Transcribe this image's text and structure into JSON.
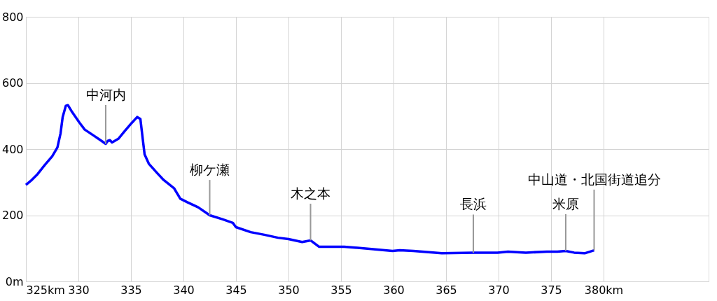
{
  "chart_data": {
    "type": "line",
    "x": [
      325,
      325.5,
      326.1,
      326.8,
      327.5,
      328.0,
      328.3,
      328.5,
      328.8,
      329.0,
      329.4,
      330.1,
      330.6,
      331.4,
      332.1,
      332.6,
      332.8,
      333.0,
      333.2,
      333.8,
      334.4,
      335.1,
      335.6,
      335.9,
      336.1,
      336.3,
      336.7,
      337.4,
      338.1,
      339.1,
      339.7,
      340.4,
      341.4,
      342.5,
      343.7,
      344.7,
      345.0,
      346.4,
      347.7,
      349.0,
      350.0,
      351.3,
      352.1,
      352.9,
      355.3,
      357.9,
      359.9,
      360.6,
      361.9,
      364.6,
      367.6,
      369.9,
      370.9,
      372.6,
      374.6,
      375.6,
      376.4,
      377.2,
      378.2,
      379.1
    ],
    "series": [
      {
        "color": "#0000ff",
        "values": [
          292,
          305,
          324,
          352,
          378,
          405,
          448,
          497,
          531,
          533,
          512,
          480,
          459,
          442,
          427,
          416,
          425,
          427,
          420,
          431,
          454,
          480,
          497,
          491,
          437,
          384,
          356,
          331,
          307,
          282,
          250,
          239,
          224,
          200,
          188,
          177,
          164,
          149,
          141,
          132,
          128,
          119,
          124,
          105,
          105,
          98,
          92,
          94,
          92,
          85,
          87,
          87,
          90,
          87,
          90,
          90,
          92,
          87,
          85,
          94
        ]
      }
    ],
    "xlim": [
      325,
      390
    ],
    "xticks": [
      {
        "value": 325,
        "label": "325km"
      },
      330,
      335,
      340,
      345,
      350,
      355,
      360,
      365,
      370,
      375,
      {
        "value": 380,
        "label": "380km"
      }
    ],
    "ylim": [
      0,
      800
    ],
    "yticks": [
      {
        "value": 0,
        "label": "0m"
      },
      200,
      400,
      600,
      800
    ],
    "grid": true,
    "marker": "none",
    "line_style": "solid",
    "annotations": [
      {
        "text": "中河内",
        "x": 332.6,
        "y": 416
      },
      {
        "text": "柳ケ瀬",
        "x": 342.5,
        "y": 200
      },
      {
        "text": "木之本",
        "x": 352.1,
        "y": 124
      },
      {
        "text": "長浜",
        "x": 367.6,
        "y": 87
      },
      {
        "text": "米原",
        "x": 376.4,
        "y": 92
      },
      {
        "text": "中山道・北国街道追分",
        "x": 379.1,
        "y": 94
      }
    ]
  }
}
